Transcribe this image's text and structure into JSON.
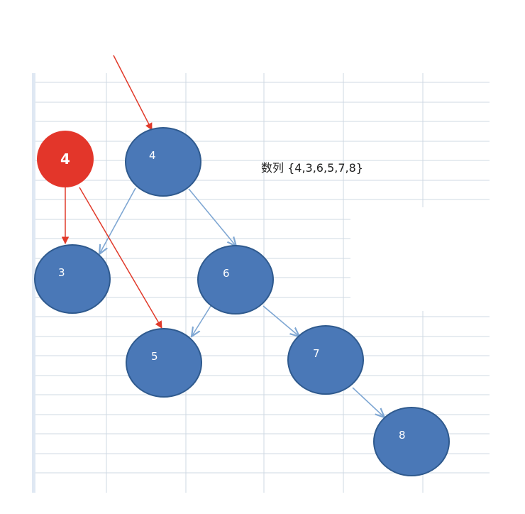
{
  "colors": {
    "node_fill": "#4a78b7",
    "node_stroke": "#2f5a8e",
    "edge": "#7fa7d3",
    "annotation": "#e13a2a",
    "marker_fill": "#e3362a",
    "grid": "#cfd8e3"
  },
  "sequence": {
    "text": "数列 {4,3,6,5,7,8}"
  },
  "marker": {
    "label": "4"
  },
  "nodes": [
    {
      "id": "n4",
      "label": "4"
    },
    {
      "id": "n3",
      "label": "3"
    },
    {
      "id": "n6",
      "label": "6"
    },
    {
      "id": "n5",
      "label": "5"
    },
    {
      "id": "n7",
      "label": "7"
    },
    {
      "id": "n8",
      "label": "8"
    }
  ],
  "edges": [
    {
      "from": "n4",
      "to": "n3"
    },
    {
      "from": "n4",
      "to": "n6"
    },
    {
      "from": "n6",
      "to": "n5"
    },
    {
      "from": "n6",
      "to": "n7"
    },
    {
      "from": "n7",
      "to": "n8"
    }
  ],
  "annotations": [
    {
      "from": "top",
      "to": "n4"
    },
    {
      "from": "marker",
      "to": "n3"
    },
    {
      "from": "marker",
      "to": "n5"
    }
  ]
}
